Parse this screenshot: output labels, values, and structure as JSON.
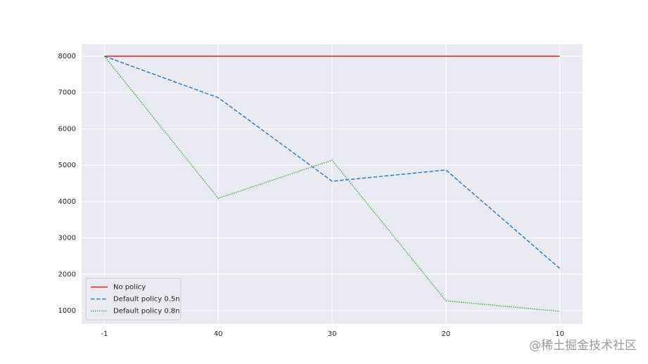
{
  "chart_data": {
    "type": "line",
    "categories": [
      "-1",
      "40",
      "30",
      "20",
      "10"
    ],
    "series": [
      {
        "name": "No policy",
        "color": "#e41a1c",
        "linestyle": "solid",
        "values": [
          8000,
          8000,
          8000,
          8000,
          8000
        ]
      },
      {
        "name": "Default policy 0.5n",
        "color": "#377eb8",
        "linestyle": "dashed",
        "values": [
          8000,
          6860,
          4560,
          4870,
          2160
        ]
      },
      {
        "name": "Default policy 0.8n",
        "color": "#4daf4a",
        "linestyle": "dotted",
        "values": [
          8000,
          4090,
          5140,
          1270,
          980
        ]
      }
    ],
    "ylim": [
      633,
      8329
    ],
    "yticks": [
      1000,
      2000,
      3000,
      4000,
      5000,
      6000,
      7000,
      8000
    ],
    "grid": true,
    "legend": "lower left",
    "background": "#eaeaf2"
  },
  "watermark": "@稀土掘金技术社区"
}
